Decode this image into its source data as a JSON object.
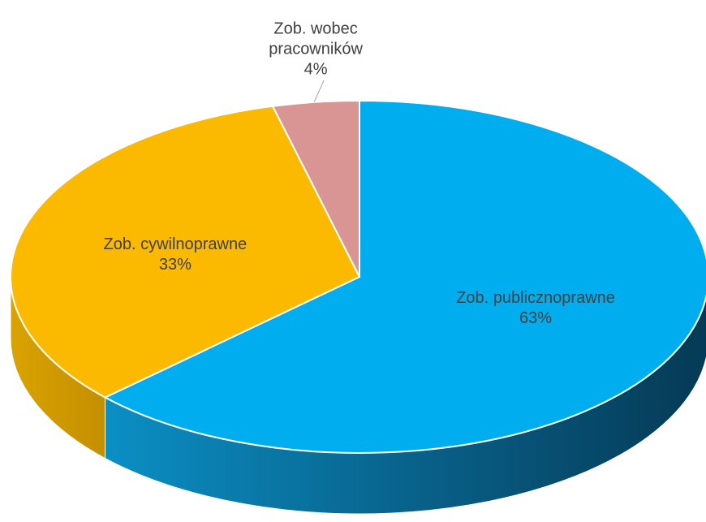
{
  "chart_data": {
    "type": "pie",
    "style": "3d",
    "categories": [
      "Zob. publicznoprawne",
      "Zob. cywilnoprawne",
      "Zob. wobec pracowników"
    ],
    "values": [
      63,
      33,
      4
    ],
    "value_labels": [
      "63%",
      "33%",
      "4%"
    ],
    "colors": [
      "#00aeef",
      "#fbb900",
      "#d99594"
    ]
  }
}
